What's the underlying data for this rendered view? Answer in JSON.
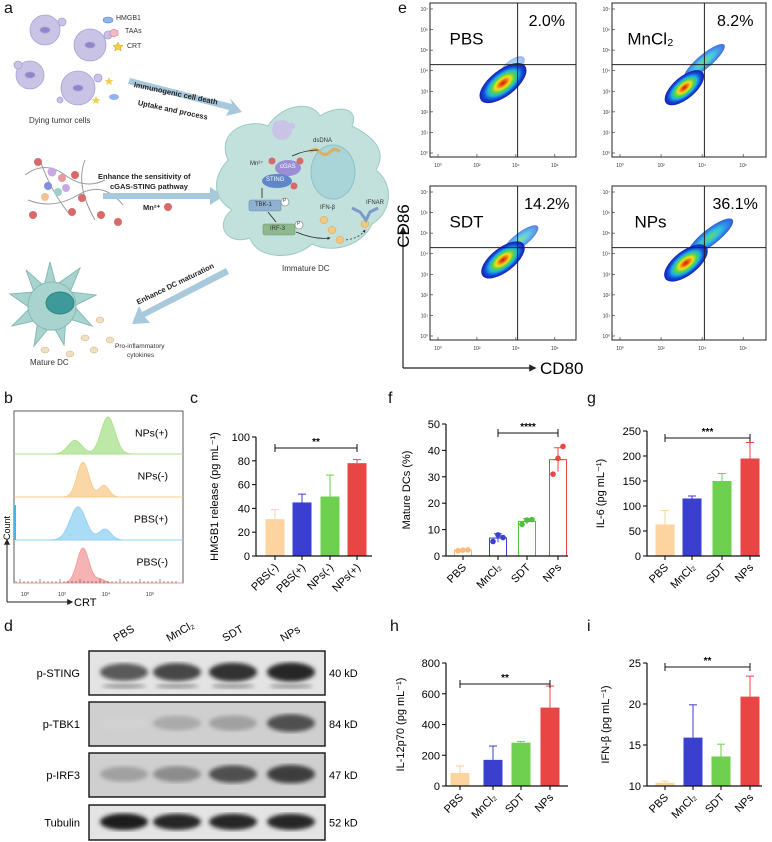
{
  "panel_labels": {
    "a": "a",
    "b": "b",
    "c": "c",
    "d": "d",
    "e": "e",
    "f": "f",
    "g": "g",
    "h": "h",
    "i": "i"
  },
  "schematic": {
    "legend": [
      {
        "label": "HMGB1",
        "color": "#7fa7e0"
      },
      {
        "label": "TAAs",
        "color": "#f0a0b0"
      },
      {
        "label": "CRT",
        "color": "#f4c542"
      }
    ],
    "dying_cells": "Dying tumor cells",
    "arrow1_top": "Immunogenic cell death",
    "arrow1_bottom": "Uptake and process",
    "arrow2_line1": "Enhance the sensitivity of",
    "arrow2_line2": "cGAS-STING pathway",
    "arrow2_mn": "Mn²⁺",
    "dc": {
      "dsdna": "dsDNA",
      "mn": "Mn²⁺",
      "cgas": "cGAS",
      "sting": "STING",
      "tbk1": "TBK-1",
      "irf3": "IRF-3",
      "p": "P",
      "ifnb": "IFN-β",
      "ifnar": "IFNAR"
    },
    "immature": "Immature DC",
    "arrow3": "Enhance DC maturation",
    "mature": "Mature DC",
    "cytokines_line1": "Pro-inflammatory",
    "cytokines_line2": "cytokines"
  },
  "flow": {
    "x_axis": "CD80",
    "y_axis": "CD86",
    "x_ticks": [
      "10⁰",
      "10²",
      "10⁴",
      "10⁶"
    ],
    "y_ticks": [
      "10⁰",
      "10¹",
      "10²",
      "10³",
      "10⁴",
      "10⁵",
      "10⁶",
      "10⁷"
    ],
    "plots": [
      {
        "name": "PBS",
        "percent": "2.0%"
      },
      {
        "name": "MnCl₂",
        "percent": "8.2%"
      },
      {
        "name": "SDT",
        "percent": "14.2%"
      },
      {
        "name": "NPs",
        "percent": "36.1%"
      }
    ]
  },
  "histogram": {
    "x_axis": "CRT",
    "y_axis": "Count",
    "x_ticks": [
      "10⁰",
      "10²",
      "10⁴",
      "10⁶"
    ],
    "lanes": [
      {
        "label": "NPs(+)",
        "color": "#a8e08a"
      },
      {
        "label": "NPs(-)",
        "color": "#f8c98a"
      },
      {
        "label": "PBS(+)",
        "color": "#8dd0f2"
      },
      {
        "label": "PBS(-)",
        "color": "#f29a9a"
      }
    ]
  },
  "western_blot": {
    "lanes": [
      "PBS",
      "MnCl₂",
      "SDT",
      "NPs"
    ],
    "rows": [
      {
        "protein": "p-STING",
        "size": "40 kD",
        "intensity": [
          0.7,
          0.8,
          0.9,
          0.95
        ]
      },
      {
        "protein": "p-TBK1",
        "size": "84 kD",
        "intensity": [
          0.1,
          0.3,
          0.35,
          0.75
        ]
      },
      {
        "protein": "p-IRF3",
        "size": "47 kD",
        "intensity": [
          0.35,
          0.45,
          0.75,
          0.85
        ]
      },
      {
        "protein": "Tubulin",
        "size": "52 kD",
        "intensity": [
          1,
          0.95,
          0.95,
          0.95
        ]
      }
    ]
  },
  "chart_data": [
    {
      "type": "bar",
      "panel": "c",
      "title": "",
      "xlabel": "",
      "ylabel": "HMGB1 release (pg mL⁻¹)",
      "categories": [
        "PBS(-)",
        "PBS(+)",
        "NPs(-)",
        "NPs(+)"
      ],
      "values": [
        31,
        45,
        50,
        78
      ],
      "errors": [
        8,
        7,
        18,
        3
      ],
      "ylim": [
        0,
        100
      ],
      "yticks": [
        "0",
        "20",
        "40",
        "60",
        "80",
        "100"
      ],
      "significance": "**",
      "colors": [
        "#fdd3a0",
        "#3a3fd0",
        "#6fcf4f",
        "#e84545"
      ],
      "style": "filled"
    },
    {
      "type": "bar",
      "panel": "f",
      "title": "",
      "xlabel": "",
      "ylabel": "Mature DCs (%)",
      "categories": [
        "PBS",
        "MnCl₂",
        "SDT",
        "NPs"
      ],
      "values": [
        2.2,
        6.8,
        13.1,
        36.5
      ],
      "errors": [
        0.3,
        1.6,
        1.0,
        4.5
      ],
      "points": [
        [
          2.0,
          2.2,
          2.3
        ],
        [
          5.5,
          8.0,
          7.0
        ],
        [
          12.0,
          13.6,
          13.8
        ],
        [
          31.0,
          37.0,
          41.5
        ]
      ],
      "ylim": [
        0,
        50
      ],
      "yticks": [
        "0",
        "10",
        "20",
        "30",
        "40",
        "50"
      ],
      "significance": "****",
      "colors": [
        "#fdb97a",
        "#3a3fd0",
        "#4fc03a",
        "#e84545"
      ],
      "style": "open"
    },
    {
      "type": "bar",
      "panel": "g",
      "title": "",
      "xlabel": "",
      "ylabel": "IL-6 (pg mL⁻¹)",
      "categories": [
        "PBS",
        "MnCl₂",
        "SDT",
        "NPs"
      ],
      "values": [
        63,
        115,
        150,
        195
      ],
      "errors": [
        28,
        5,
        15,
        32
      ],
      "ylim": [
        0,
        250
      ],
      "yticks": [
        "0",
        "50",
        "100",
        "150",
        "200",
        "250"
      ],
      "significance": "***",
      "colors": [
        "#fdd3a0",
        "#3a3fd0",
        "#6fcf4f",
        "#e84545"
      ],
      "style": "filled"
    },
    {
      "type": "bar",
      "panel": "h",
      "title": "",
      "xlabel": "",
      "ylabel": "IL-12p70 (pg mL⁻¹)",
      "categories": [
        "PBS",
        "MnCl₂",
        "SDT",
        "NPs"
      ],
      "values": [
        85,
        170,
        282,
        510
      ],
      "errors": [
        45,
        90,
        8,
        140
      ],
      "ylim": [
        0,
        800
      ],
      "yticks": [
        "0",
        "200",
        "400",
        "600",
        "800"
      ],
      "significance": "**",
      "colors": [
        "#fdd3a0",
        "#3a3fd0",
        "#6fcf4f",
        "#e84545"
      ],
      "style": "filled"
    },
    {
      "type": "bar",
      "panel": "i",
      "title": "",
      "xlabel": "",
      "ylabel": "IFN-β (pg mL⁻¹)",
      "categories": [
        "PBS",
        "MnCl₂",
        "SDT",
        "NPs"
      ],
      "values": [
        10.4,
        15.9,
        13.6,
        20.9
      ],
      "errors": [
        0.2,
        4.0,
        1.5,
        2.5
      ],
      "ylim": [
        10,
        25
      ],
      "yticks": [
        "10",
        "15",
        "20",
        "25"
      ],
      "significance": "**",
      "colors": [
        "#fdd3a0",
        "#3a3fd0",
        "#6fcf4f",
        "#e84545"
      ],
      "style": "filled"
    }
  ]
}
